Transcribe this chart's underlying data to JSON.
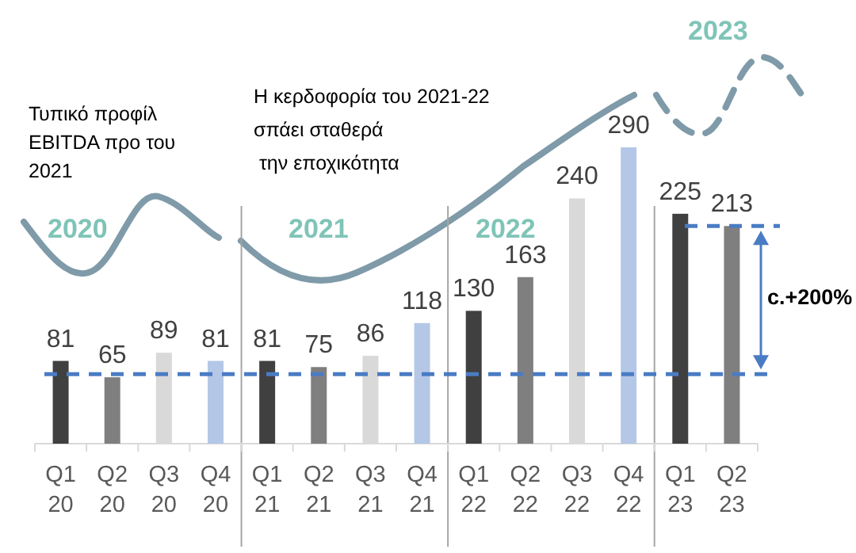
{
  "chart_data": {
    "type": "bar",
    "categories": [
      "Q1\n20",
      "Q2\n20",
      "Q3\n20",
      "Q4\n20",
      "Q1\n21",
      "Q2\n21",
      "Q3\n21",
      "Q4\n21",
      "Q1\n22",
      "Q2\n22",
      "Q3\n22",
      "Q4\n22",
      "Q1\n23",
      "Q2\n23"
    ],
    "values": [
      81,
      65,
      89,
      81,
      81,
      75,
      86,
      118,
      130,
      163,
      240,
      290,
      225,
      213
    ],
    "colors": [
      "#404040",
      "#7f7f7f",
      "#d9d9d9",
      "#b4c7e7",
      "#404040",
      "#7f7f7f",
      "#d9d9d9",
      "#b4c7e7",
      "#404040",
      "#7f7f7f",
      "#d9d9d9",
      "#b4c7e7",
      "#404040",
      "#7f7f7f"
    ],
    "data_labels": true,
    "ref_lines": [
      {
        "axis": "y",
        "value": 68,
        "color": "#4a7cc4",
        "line_style": "dashed"
      }
    ],
    "annotations": [
      "Τυπικό προφίλ\nEBITDA προ του\n2021",
      "Η κερδοφορία του 2021-22\nσπάει σταθερά\n την εποχικότητα",
      "2020",
      "2021",
      "2022",
      "2023",
      "c.+200%"
    ]
  }
}
